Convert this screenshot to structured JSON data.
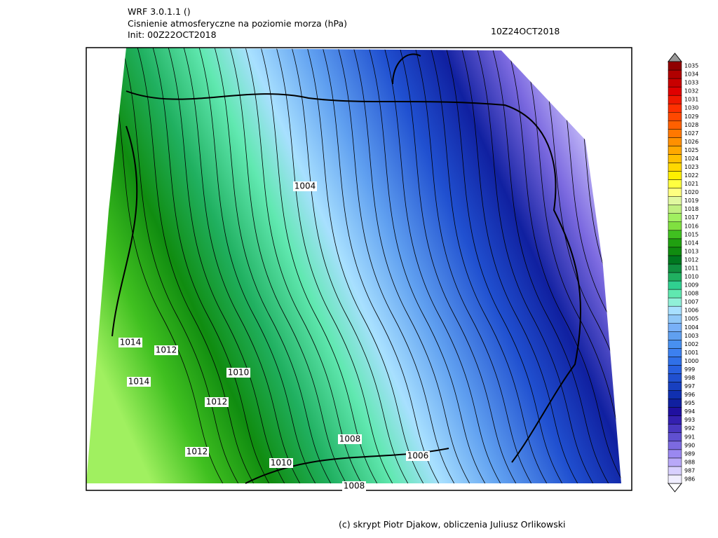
{
  "header": {
    "model": "WRF 3.0.1.1 ()",
    "title": "Cisnienie atmosferyczne na poziomie morza (hPa)",
    "init": "Init: 00Z22OCT2018",
    "valid": "10Z24OCT2018"
  },
  "contour_labels": [
    1004,
    1014,
    1012,
    1010,
    1014,
    1012,
    1008,
    1012,
    1010,
    1006,
    1008
  ],
  "colorbar": {
    "levels": [
      986,
      987,
      988,
      989,
      990,
      991,
      992,
      993,
      994,
      995,
      996,
      997,
      998,
      999,
      1000,
      1001,
      1002,
      1003,
      1004,
      1005,
      1006,
      1007,
      1008,
      1009,
      1010,
      1011,
      1012,
      1013,
      1014,
      1015,
      1016,
      1017,
      1018,
      1019,
      1020,
      1021,
      1022,
      1023,
      1024,
      1025,
      1026,
      1027,
      1028,
      1029,
      1030,
      1031,
      1032,
      1033,
      1034,
      1035
    ],
    "colors": [
      "#f0eeff",
      "#d8d0ff",
      "#b8a8f8",
      "#9a88f0",
      "#7c6ae0",
      "#6050d0",
      "#4a38c0",
      "#3420b0",
      "#2010a0",
      "#1020a0",
      "#1030b0",
      "#1840c0",
      "#2050d0",
      "#2860e0",
      "#3070e8",
      "#3c80f0",
      "#4890f0",
      "#60a0f0",
      "#78b0f8",
      "#90c8f8",
      "#a8e0ff",
      "#90f0d8",
      "#60e8b0",
      "#30d090",
      "#20b060",
      "#109040",
      "#007820",
      "#108c10",
      "#20a010",
      "#40c020",
      "#80e040",
      "#a0f060",
      "#c0f080",
      "#e0f8a0",
      "#ffff80",
      "#ffff40",
      "#fff000",
      "#ffd800",
      "#ffc000",
      "#ffa800",
      "#ff9000",
      "#ff7800",
      "#ff6000",
      "#ff4800",
      "#ff3000",
      "#f01800",
      "#e00000",
      "#c80000",
      "#b00000",
      "#900000"
    ]
  },
  "footer": "(c) skrypt Piotr Djakow, obliczenia Juliusz Orlikowski"
}
